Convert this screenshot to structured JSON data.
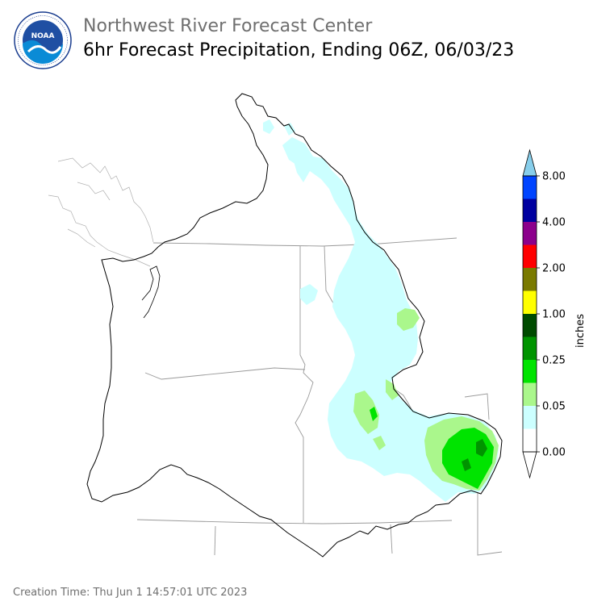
{
  "header": {
    "org_title": "Northwest River Forecast Center",
    "product_title": "6hr Forecast Precipitation, Ending 06Z, 06/03/23"
  },
  "logo": {
    "icon": "noaa-logo",
    "text": "NOAA",
    "ring_text": "NATIONAL OCEANIC AND ATMOSPHERIC ADMINISTRATION · U.S. DEPARTMENT OF COMMERCE"
  },
  "legend": {
    "unit": "inches",
    "tick_labels": [
      "0.00",
      "0.05",
      "0.25",
      "1.00",
      "2.00",
      "4.00",
      "8.00"
    ],
    "bins": [
      {
        "range": "0.00-0.01",
        "color": "#ffffff"
      },
      {
        "range": "0.01-0.05",
        "color": "#ccffff"
      },
      {
        "range": "0.05-0.10",
        "color": "#aaf78c"
      },
      {
        "range": "0.10-0.25",
        "color": "#00e400"
      },
      {
        "range": "0.25-0.50",
        "color": "#009400"
      },
      {
        "range": "0.50-1.00",
        "color": "#004b00"
      },
      {
        "range": "1.00-1.50",
        "color": "#ffff00"
      },
      {
        "range": "1.50-2.00",
        "color": "#7a7a00"
      },
      {
        "range": "2.00-3.00",
        "color": "#ff0000"
      },
      {
        "range": "3.00-4.00",
        "color": "#8c008c"
      },
      {
        "range": "4.00-6.00",
        "color": "#0000a0"
      },
      {
        "range": "6.00-8.00",
        "color": "#0044ff"
      },
      {
        "range": "> 8.00",
        "color": "#87ceeb"
      }
    ],
    "under_color": "#ffffff"
  },
  "map": {
    "basin_outline_color": "#000000",
    "state_border_color": "#999999",
    "precip_colors": {
      "light": "#ccffff",
      "moderate": "#aaf78c",
      "heavy": "#00e400",
      "heavier": "#009400"
    }
  },
  "footer": {
    "creation_time": "Creation Time: Thu Jun 1 14:57:01 UTC 2023"
  }
}
